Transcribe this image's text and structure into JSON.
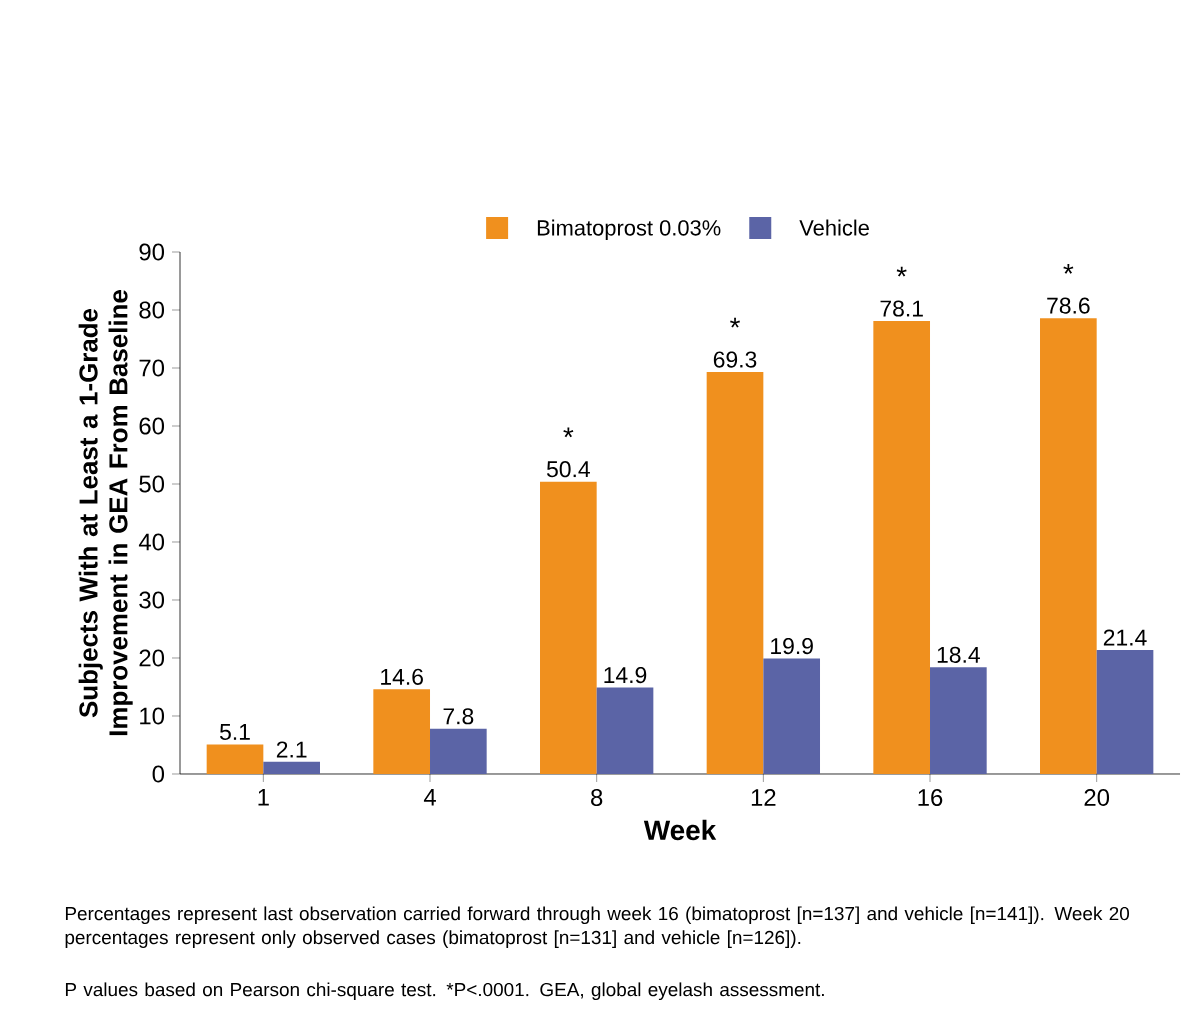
{
  "chart_data": {
    "type": "bar",
    "xlabel": "Week",
    "ylabel": "Subjects With at Least a 1-Grade Improvement in GEA From Baseline",
    "categories": [
      "1",
      "4",
      "8",
      "12",
      "16",
      "20"
    ],
    "series": [
      {
        "name": "Bimatoprost 0.03%",
        "color": "#f0901e",
        "values": [
          5.1,
          14.6,
          50.4,
          69.3,
          78.1,
          78.6
        ]
      },
      {
        "name": "Vehicle",
        "color": "#5b64a6",
        "values": [
          2.1,
          7.8,
          14.9,
          19.9,
          18.4,
          21.4
        ]
      }
    ],
    "ylim": [
      0,
      90
    ],
    "yticks": [
      0,
      10,
      20,
      30,
      40,
      50,
      60,
      70,
      80,
      90
    ],
    "data_labels": true,
    "legend": "top",
    "grid": false,
    "annotations": [
      {
        "text": "*",
        "x": "8",
        "y": 50.4
      },
      {
        "text": "*",
        "x": "12",
        "y": 69.3
      },
      {
        "text": "*",
        "x": "16",
        "y": 78.1
      },
      {
        "text": "*",
        "x": "20",
        "y": 78.6
      },
      "Percentages represent last observation carried forward through week 16 (bimatoprost [n=137] and vehicle [n=141]). Week 20 percentages represent only observed cases (bimatoprost [n=131] and vehicle [n=126]).",
      "P values based on Pearson chi-square test. *P<.0001. GEA, global eyelash assessment."
    ]
  }
}
